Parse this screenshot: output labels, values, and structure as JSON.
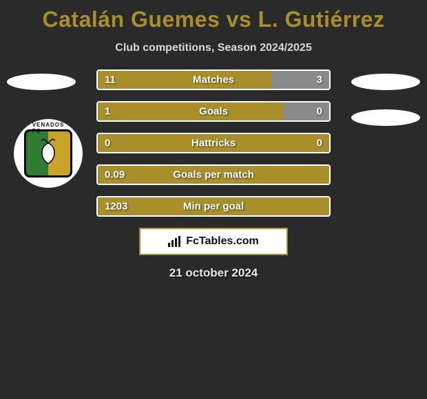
{
  "colors": {
    "background": "#2a2a2b",
    "accent": "#a98f2c",
    "neutral": "#8a8a8b",
    "subtitle": "#d8d8d8",
    "bar_border": "#ffffff",
    "badge_border": "#a98f2c",
    "title_text": "#a98f2c"
  },
  "title": "Catalán Guemes vs L. Gutiérrez",
  "subtitle": "Club competitions, Season 2024/2025",
  "date": "21 october 2024",
  "badge": {
    "label": "FcTables.com"
  },
  "bars": [
    {
      "label": "Matches",
      "left_val": "11",
      "right_val": "3",
      "left_pct": 75,
      "right_pct": 25,
      "right_color": "#8a8a8b"
    },
    {
      "label": "Goals",
      "left_val": "1",
      "right_val": "0",
      "left_pct": 80,
      "right_pct": 20,
      "right_color": "#8a8a8b"
    },
    {
      "label": "Hattricks",
      "left_val": "0",
      "right_val": "0",
      "left_pct": 100,
      "right_pct": 0,
      "right_color": "#8a8a8b"
    },
    {
      "label": "Goals per match",
      "left_val": "0.09",
      "right_val": "",
      "left_pct": 100,
      "right_pct": 0,
      "right_color": "#8a8a8b"
    },
    {
      "label": "Min per goal",
      "left_val": "1203",
      "right_val": "",
      "left_pct": 100,
      "right_pct": 0,
      "right_color": "#8a8a8b"
    }
  ]
}
